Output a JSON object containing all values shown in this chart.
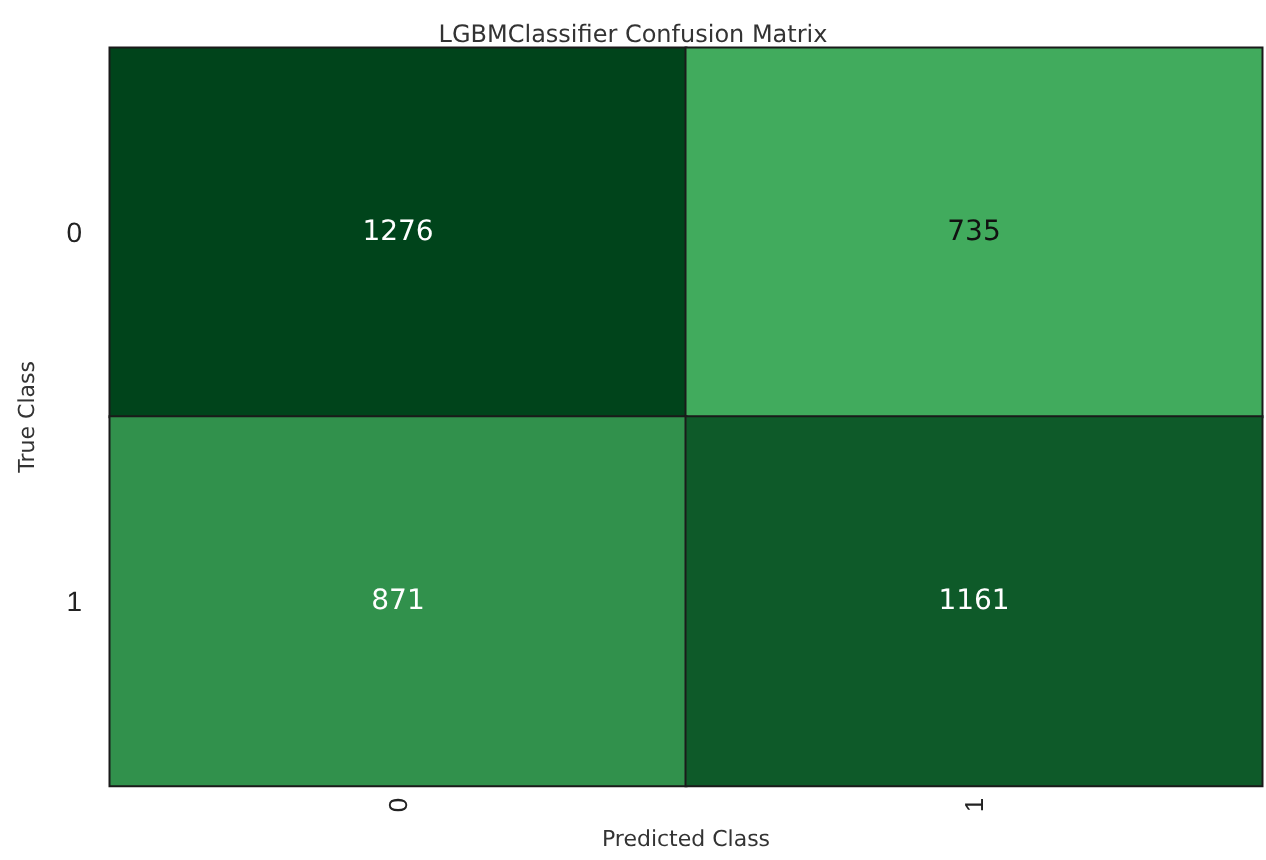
{
  "chart_data": {
    "type": "heatmap",
    "title": "LGBMClassifier Confusion Matrix",
    "xlabel": "Predicted Class",
    "ylabel": "True Class",
    "data_labels": true,
    "categories": [
      "0",
      "1"
    ],
    "y_categories": [
      "0",
      "1"
    ],
    "cells": [
      [
        1276,
        735
      ],
      [
        871,
        1161
      ]
    ]
  }
}
